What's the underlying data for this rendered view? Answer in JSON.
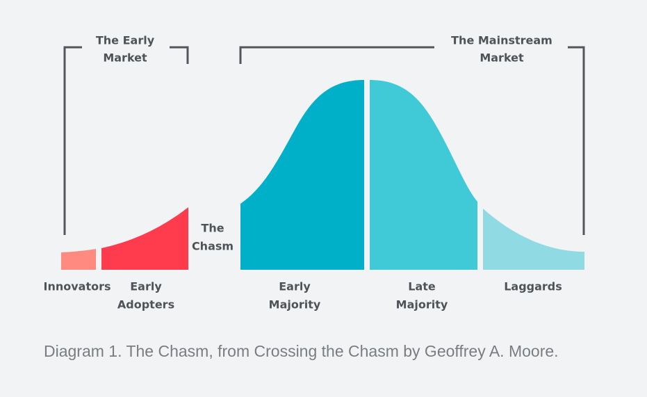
{
  "brackets": [
    {
      "label": [
        "The Early",
        "Market"
      ]
    },
    {
      "label": [
        "The Mainstream",
        "Market"
      ]
    }
  ],
  "chasm": {
    "label": [
      "The",
      "Chasm"
    ]
  },
  "segments": [
    {
      "label": [
        "Innovators"
      ]
    },
    {
      "label": [
        "Early",
        "Adopters"
      ]
    },
    {
      "label": [
        "Early",
        "Majority"
      ]
    },
    {
      "label": [
        "Late",
        "Majority"
      ]
    },
    {
      "label": [
        "Laggards"
      ]
    }
  ],
  "caption": "Diagram 1. The Chasm, from Crossing the Chasm by Geoffrey A. Moore."
}
